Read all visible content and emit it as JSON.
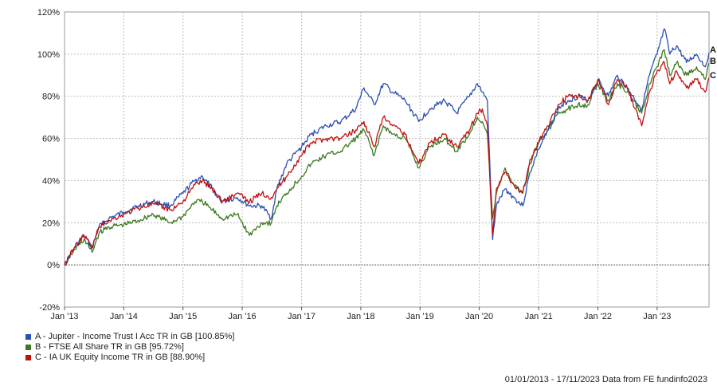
{
  "chart_data": {
    "type": "line",
    "title": "",
    "xlabel": "",
    "ylabel": "",
    "x_range": [
      "2013-01-01",
      "2023-11-17"
    ],
    "ylim": [
      -20,
      120
    ],
    "y_ticks": [
      -20,
      0,
      20,
      40,
      60,
      80,
      100,
      120
    ],
    "y_tick_labels": [
      "-20%",
      "0%",
      "20%",
      "40%",
      "60%",
      "80%",
      "100%",
      "120%"
    ],
    "x_ticks": [
      "2013-01-01",
      "2014-01-01",
      "2015-01-01",
      "2016-01-01",
      "2017-01-01",
      "2018-01-01",
      "2019-01-01",
      "2020-01-01",
      "2021-01-01",
      "2022-01-01",
      "2023-01-01"
    ],
    "x_tick_labels": [
      "Jan '13",
      "Jan '14",
      "Jan '15",
      "Jan '16",
      "Jan '17",
      "Jan '18",
      "Jan '19",
      "Jan '20",
      "Jan '21",
      "Jan '22",
      "Jan '23"
    ],
    "grid": true,
    "legend_position": "bottom-left",
    "series": [
      {
        "name": "A - Jupiter - Income Trust I Acc TR in GB [100.85%]",
        "end_label": "A",
        "color": "#2a4fb0",
        "points": [
          [
            "2013-01-01",
            0
          ],
          [
            "2013-03-01",
            8
          ],
          [
            "2013-05-01",
            14
          ],
          [
            "2013-06-20",
            8
          ],
          [
            "2013-08-01",
            18
          ],
          [
            "2013-10-01",
            22
          ],
          [
            "2014-01-01",
            25
          ],
          [
            "2014-04-01",
            28
          ],
          [
            "2014-07-01",
            30
          ],
          [
            "2014-10-15",
            28
          ],
          [
            "2015-01-01",
            34
          ],
          [
            "2015-03-15",
            40
          ],
          [
            "2015-05-01",
            42
          ],
          [
            "2015-07-01",
            36
          ],
          [
            "2015-09-01",
            30
          ],
          [
            "2015-12-01",
            32
          ],
          [
            "2016-02-15",
            28
          ],
          [
            "2016-05-01",
            28
          ],
          [
            "2016-06-28",
            22
          ],
          [
            "2016-08-01",
            36
          ],
          [
            "2016-10-01",
            48
          ],
          [
            "2017-01-01",
            56
          ],
          [
            "2017-03-01",
            62
          ],
          [
            "2017-06-01",
            66
          ],
          [
            "2017-09-01",
            68
          ],
          [
            "2017-12-01",
            74
          ],
          [
            "2018-01-20",
            84
          ],
          [
            "2018-03-25",
            76
          ],
          [
            "2018-05-20",
            86
          ],
          [
            "2018-07-15",
            82
          ],
          [
            "2018-10-01",
            78
          ],
          [
            "2018-12-24",
            68
          ],
          [
            "2019-03-01",
            74
          ],
          [
            "2019-06-01",
            78
          ],
          [
            "2019-08-15",
            72
          ],
          [
            "2019-11-01",
            80
          ],
          [
            "2019-12-20",
            86
          ],
          [
            "2020-01-20",
            82
          ],
          [
            "2020-02-20",
            78
          ],
          [
            "2020-03-23",
            12
          ],
          [
            "2020-04-15",
            28
          ],
          [
            "2020-06-08",
            36
          ],
          [
            "2020-08-01",
            32
          ],
          [
            "2020-09-25",
            28
          ],
          [
            "2020-11-09",
            44
          ],
          [
            "2021-01-01",
            55
          ],
          [
            "2021-03-01",
            64
          ],
          [
            "2021-05-01",
            74
          ],
          [
            "2021-07-01",
            78
          ],
          [
            "2021-09-01",
            80
          ],
          [
            "2021-11-01",
            78
          ],
          [
            "2022-01-01",
            88
          ],
          [
            "2022-03-07",
            80
          ],
          [
            "2022-05-01",
            90
          ],
          [
            "2022-07-01",
            84
          ],
          [
            "2022-09-28",
            74
          ],
          [
            "2022-11-15",
            90
          ],
          [
            "2023-01-01",
            100
          ],
          [
            "2023-02-15",
            112
          ],
          [
            "2023-03-20",
            100
          ],
          [
            "2023-05-01",
            104
          ],
          [
            "2023-07-01",
            96
          ],
          [
            "2023-09-01",
            100
          ],
          [
            "2023-10-25",
            94
          ],
          [
            "2023-11-17",
            100.85
          ]
        ]
      },
      {
        "name": "B - FTSE All Share TR in GB [95.72%]",
        "end_label": "B",
        "color": "#3c7a1e",
        "points": [
          [
            "2013-01-01",
            0
          ],
          [
            "2013-03-01",
            7
          ],
          [
            "2013-05-01",
            12
          ],
          [
            "2013-06-20",
            6
          ],
          [
            "2013-08-01",
            15
          ],
          [
            "2013-10-01",
            18
          ],
          [
            "2014-01-01",
            19
          ],
          [
            "2014-04-01",
            21
          ],
          [
            "2014-07-01",
            24
          ],
          [
            "2014-10-15",
            20
          ],
          [
            "2015-01-01",
            23
          ],
          [
            "2015-03-15",
            30
          ],
          [
            "2015-05-01",
            30
          ],
          [
            "2015-07-01",
            26
          ],
          [
            "2015-09-01",
            22
          ],
          [
            "2015-12-01",
            24
          ],
          [
            "2016-02-15",
            14
          ],
          [
            "2016-05-01",
            20
          ],
          [
            "2016-06-28",
            20
          ],
          [
            "2016-08-01",
            28
          ],
          [
            "2016-10-01",
            34
          ],
          [
            "2017-01-01",
            42
          ],
          [
            "2017-03-01",
            48
          ],
          [
            "2017-06-01",
            52
          ],
          [
            "2017-09-01",
            54
          ],
          [
            "2017-12-01",
            60
          ],
          [
            "2018-01-20",
            64
          ],
          [
            "2018-03-25",
            52
          ],
          [
            "2018-05-20",
            66
          ],
          [
            "2018-07-15",
            62
          ],
          [
            "2018-10-01",
            60
          ],
          [
            "2018-12-24",
            46
          ],
          [
            "2019-03-01",
            56
          ],
          [
            "2019-06-01",
            60
          ],
          [
            "2019-08-15",
            54
          ],
          [
            "2019-11-01",
            62
          ],
          [
            "2019-12-20",
            70
          ],
          [
            "2020-01-20",
            68
          ],
          [
            "2020-02-20",
            62
          ],
          [
            "2020-03-23",
            22
          ],
          [
            "2020-04-15",
            34
          ],
          [
            "2020-06-08",
            46
          ],
          [
            "2020-08-01",
            38
          ],
          [
            "2020-09-25",
            34
          ],
          [
            "2020-11-09",
            48
          ],
          [
            "2021-01-01",
            58
          ],
          [
            "2021-03-01",
            64
          ],
          [
            "2021-05-01",
            72
          ],
          [
            "2021-07-01",
            74
          ],
          [
            "2021-09-01",
            76
          ],
          [
            "2021-11-01",
            76
          ],
          [
            "2022-01-01",
            86
          ],
          [
            "2022-03-07",
            78
          ],
          [
            "2022-05-01",
            86
          ],
          [
            "2022-07-01",
            82
          ],
          [
            "2022-09-28",
            72
          ],
          [
            "2022-11-15",
            86
          ],
          [
            "2023-01-01",
            94
          ],
          [
            "2023-02-15",
            102
          ],
          [
            "2023-03-20",
            90
          ],
          [
            "2023-05-01",
            96
          ],
          [
            "2023-07-01",
            90
          ],
          [
            "2023-09-01",
            94
          ],
          [
            "2023-10-25",
            88
          ],
          [
            "2023-11-17",
            95.72
          ]
        ]
      },
      {
        "name": "C - IA UK Equity Income TR in GB [88.90%]",
        "end_label": "C",
        "color": "#c01010",
        "points": [
          [
            "2013-01-01",
            0
          ],
          [
            "2013-03-01",
            8
          ],
          [
            "2013-05-01",
            14
          ],
          [
            "2013-06-20",
            8
          ],
          [
            "2013-08-01",
            18
          ],
          [
            "2013-10-01",
            21
          ],
          [
            "2014-01-01",
            24
          ],
          [
            "2014-04-01",
            27
          ],
          [
            "2014-07-01",
            29
          ],
          [
            "2014-10-15",
            26
          ],
          [
            "2015-01-01",
            30
          ],
          [
            "2015-03-15",
            38
          ],
          [
            "2015-05-01",
            40
          ],
          [
            "2015-07-01",
            36
          ],
          [
            "2015-09-01",
            30
          ],
          [
            "2015-12-01",
            34
          ],
          [
            "2016-02-15",
            30
          ],
          [
            "2016-05-01",
            34
          ],
          [
            "2016-06-28",
            32
          ],
          [
            "2016-08-01",
            36
          ],
          [
            "2016-10-01",
            42
          ],
          [
            "2017-01-01",
            52
          ],
          [
            "2017-03-01",
            58
          ],
          [
            "2017-06-01",
            60
          ],
          [
            "2017-09-01",
            60
          ],
          [
            "2017-12-01",
            64
          ],
          [
            "2018-01-20",
            68
          ],
          [
            "2018-03-25",
            56
          ],
          [
            "2018-05-20",
            70
          ],
          [
            "2018-07-15",
            66
          ],
          [
            "2018-10-01",
            62
          ],
          [
            "2018-12-24",
            48
          ],
          [
            "2019-03-01",
            58
          ],
          [
            "2019-06-01",
            62
          ],
          [
            "2019-08-15",
            56
          ],
          [
            "2019-11-01",
            64
          ],
          [
            "2019-12-20",
            72
          ],
          [
            "2020-01-20",
            74
          ],
          [
            "2020-02-20",
            66
          ],
          [
            "2020-03-23",
            14
          ],
          [
            "2020-04-15",
            36
          ],
          [
            "2020-06-08",
            44
          ],
          [
            "2020-08-01",
            38
          ],
          [
            "2020-09-25",
            34
          ],
          [
            "2020-11-09",
            50
          ],
          [
            "2021-01-01",
            58
          ],
          [
            "2021-03-01",
            66
          ],
          [
            "2021-05-01",
            76
          ],
          [
            "2021-07-01",
            80
          ],
          [
            "2021-09-01",
            80
          ],
          [
            "2021-11-01",
            78
          ],
          [
            "2022-01-01",
            88
          ],
          [
            "2022-03-07",
            76
          ],
          [
            "2022-05-01",
            88
          ],
          [
            "2022-07-01",
            84
          ],
          [
            "2022-09-28",
            66
          ],
          [
            "2022-11-15",
            82
          ],
          [
            "2023-01-01",
            92
          ],
          [
            "2023-02-15",
            96
          ],
          [
            "2023-03-20",
            86
          ],
          [
            "2023-05-01",
            92
          ],
          [
            "2023-07-01",
            84
          ],
          [
            "2023-09-01",
            88
          ],
          [
            "2023-10-25",
            82
          ],
          [
            "2023-11-17",
            88.9
          ]
        ]
      }
    ]
  },
  "footer": "01/01/2013 - 17/11/2023 Data from FE fundinfo2023"
}
